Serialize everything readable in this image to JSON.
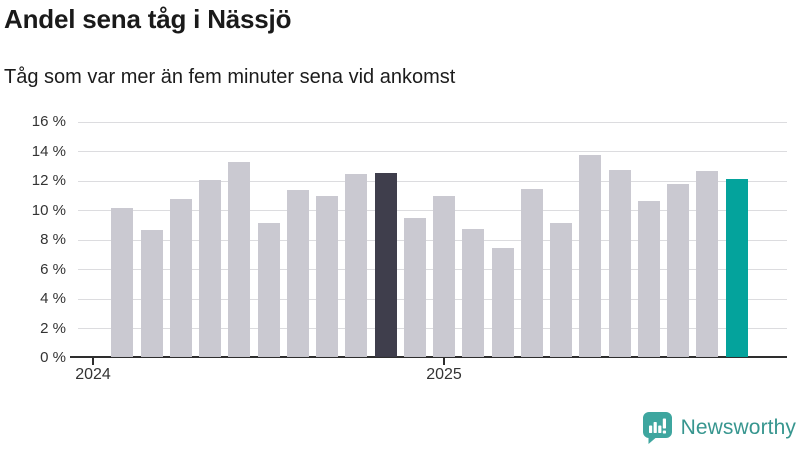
{
  "header": {
    "title": "Andel sena tåg i Nässjö",
    "subtitle": "Tåg som var mer än fem minuter sena vid ankomst"
  },
  "chart_data": {
    "type": "bar",
    "title": "Andel sena tåg i Nässjö",
    "subtitle": "Tåg som var mer än fem minuter sena vid ankomst",
    "unit": "%",
    "ylim": [
      0,
      16
    ],
    "ytick_step": 2,
    "ytick_labels": [
      "16 %",
      "14 %",
      "12 %",
      "10 %",
      "8 %",
      "6 %",
      "4 %",
      "2 %",
      "0 %"
    ],
    "grid": true,
    "legend": null,
    "categories": [
      "2024-02",
      "2024-03",
      "2024-04",
      "2024-05",
      "2024-06",
      "2024-07",
      "2024-08",
      "2024-09",
      "2024-10",
      "2024-11",
      "2024-12",
      "2025-01",
      "2025-02",
      "2025-03",
      "2025-04",
      "2025-05",
      "2025-06",
      "2025-07",
      "2025-08",
      "2025-09",
      "2025-10",
      "2025-11"
    ],
    "values": [
      10.1,
      8.6,
      10.7,
      12.0,
      13.2,
      9.1,
      11.3,
      10.9,
      12.4,
      12.5,
      9.4,
      10.9,
      8.7,
      7.4,
      11.4,
      9.1,
      13.7,
      12.7,
      10.6,
      11.7,
      12.6,
      12.1
    ],
    "highlight": {
      "dark_index": 9,
      "accent_index": 21
    },
    "xticks": [
      {
        "label": "2024",
        "slot": -1
      },
      {
        "label": "2025",
        "slot": 11
      }
    ],
    "colors": {
      "bar_default": "#c9c8d0",
      "bar_dark": "#3c3b49",
      "bar_accent": "#00a29a",
      "gridline": "#dcdcdf",
      "axis": "#2e2e2e",
      "tick_label": "#333333"
    }
  },
  "footer": {
    "brand": "Newsworthy",
    "brand_color": "#37968f",
    "icon_color": "#3ea69f",
    "icon": "newsworthy-logo-icon"
  }
}
